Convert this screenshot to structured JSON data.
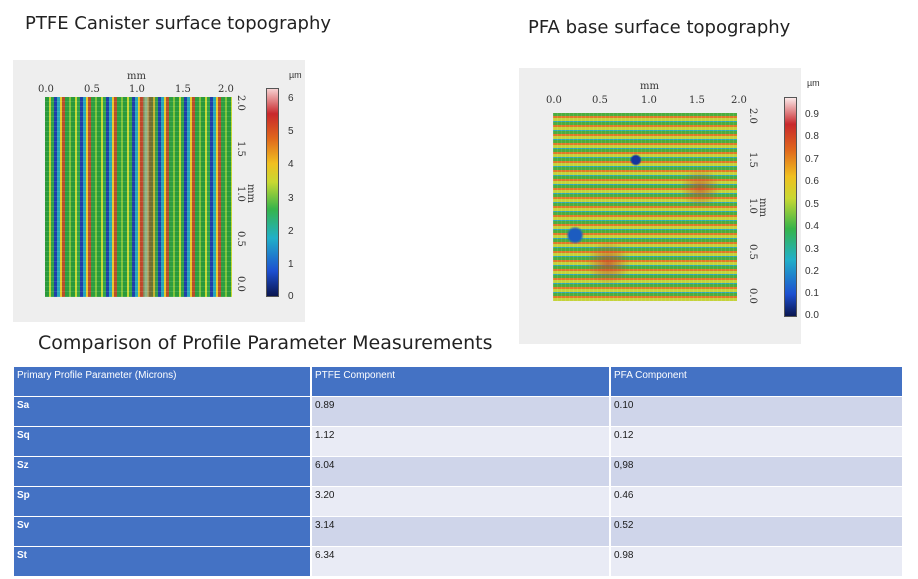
{
  "ptfe_plot": {
    "title": "PTFE Canister surface topography",
    "x_unit": "mm",
    "x_ticks": [
      "0.0",
      "0.5",
      "1.0",
      "1.5",
      "2.0"
    ],
    "y_unit": "mm",
    "y_ticks": [
      "2.0",
      "1.5",
      "1.0",
      "0.5",
      "0.0"
    ],
    "scale_unit": "µm",
    "scale_ticks": [
      "6",
      "5",
      "4",
      "3",
      "2",
      "1",
      "0"
    ]
  },
  "pfa_plot": {
    "title": "PFA base surface topography",
    "x_unit": "mm",
    "x_ticks": [
      "0.0",
      "0.5",
      "1.0",
      "1.5",
      "2.0"
    ],
    "y_unit": "mm",
    "y_ticks": [
      "2.0",
      "1.5",
      "1.0",
      "0.5",
      "0.0"
    ],
    "scale_unit": "µm",
    "scale_ticks": [
      "0.9",
      "0.8",
      "0.7",
      "0.6",
      "0.5",
      "0.4",
      "0.3",
      "0.2",
      "0.1",
      "0.0"
    ]
  },
  "comparison": {
    "title": "Comparison of Profile Parameter Measurements",
    "headers": [
      "Primary Profile Parameter (Microns)",
      "PTFE Component",
      "PFA Component"
    ],
    "rows": [
      {
        "param": "Sa",
        "ptfe": "0.89",
        "pfa": "0.10"
      },
      {
        "param": "Sq",
        "ptfe": "1.12",
        "pfa": "0.12"
      },
      {
        "param": "Sz",
        "ptfe": "6.04",
        "pfa": "0,98"
      },
      {
        "param": "Sp",
        "ptfe": "3.20",
        "pfa": "0.46"
      },
      {
        "param": "Sv",
        "ptfe": "3.14",
        "pfa": "0.52"
      },
      {
        "param": "St",
        "ptfe": "6.34",
        "pfa": "0.98"
      }
    ]
  }
}
